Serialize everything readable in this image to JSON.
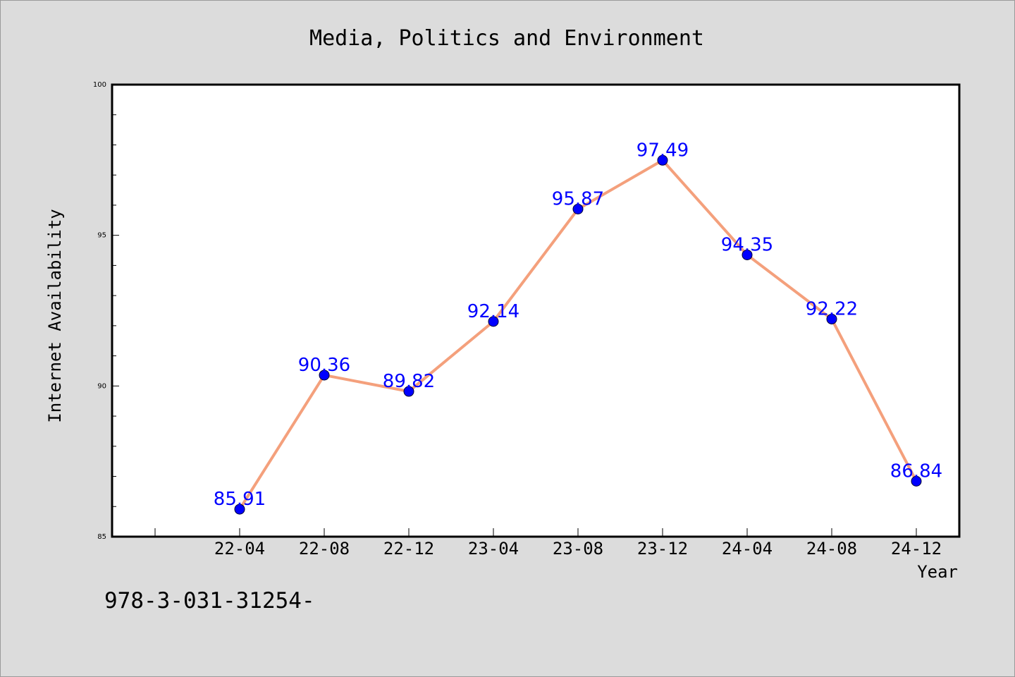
{
  "chart_data": {
    "type": "line",
    "title": "Media, Politics and Environment",
    "xlabel": "Year",
    "ylabel": "Internet Availability",
    "categories": [
      "22-04",
      "22-08",
      "22-12",
      "23-04",
      "23-08",
      "23-12",
      "24-04",
      "24-08",
      "24-12"
    ],
    "values": [
      85.91,
      90.36,
      89.82,
      92.14,
      95.87,
      97.49,
      94.35,
      92.22,
      86.84
    ],
    "value_labels": [
      "85.91",
      "90.36",
      "89.82",
      "92.14",
      "95.87",
      "97.49",
      "94.35",
      "92.22",
      "86.84"
    ],
    "ylim": [
      85,
      100
    ],
    "y_major_ticks": [
      85,
      90,
      95,
      100
    ],
    "y_tick_labels": [
      "85",
      "90",
      "95",
      "100"
    ],
    "grid": false,
    "colors": {
      "line": "#f4a07c",
      "marker": "#0000ff",
      "value_label": "#0000ff",
      "background": "#dcdcdc",
      "plot_background": "#ffffff"
    }
  },
  "footer": {
    "code": "978-3-031-31254-"
  }
}
